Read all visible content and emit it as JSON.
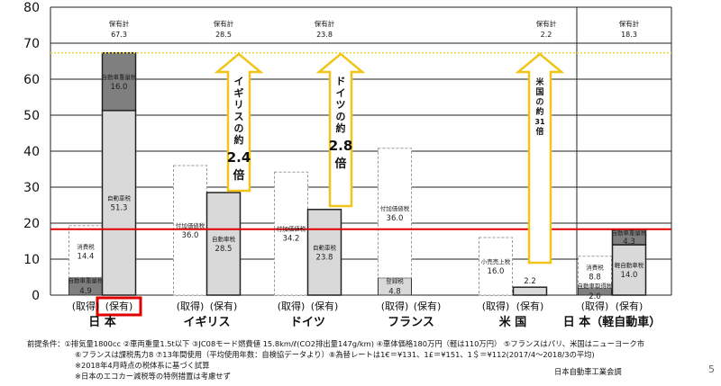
{
  "chart_data": {
    "type": "bar",
    "ylim": [
      0,
      80
    ],
    "yticks": [
      0,
      10,
      20,
      30,
      40,
      50,
      60,
      70,
      80
    ],
    "reference_line": 18.3,
    "dotted_line": 67.3,
    "colors": {
      "automobile_tax": "#d9d9d9",
      "weight_tax": "#7f7f7f",
      "consumption_tax": "#ffffff",
      "dashed_outline": "#9a9a9a",
      "red_line": "#e00000",
      "dotted_line": "#e6d63a",
      "arrow_outline": "#f0c419",
      "highlight_box": "#e00000"
    },
    "groups": [
      {
        "country": "日 本",
        "acquisition": {
          "label": "(取得)",
          "segments": [
            {
              "name": "自動車重量税",
              "value": 4.9,
              "color": "weight_tax"
            },
            {
              "name": "消費税",
              "value": 14.4,
              "color": "consumption_tax"
            }
          ]
        },
        "holding": {
          "label": "(保有)",
          "total_label": "保有計",
          "total": "67.3",
          "highlight": true,
          "segments": [
            {
              "name": "自動車税",
              "value": 51.3,
              "color": "automobile_tax"
            },
            {
              "name": "自動車重量税",
              "value": 16.0,
              "color": "weight_tax"
            }
          ]
        }
      },
      {
        "country": "イギリス",
        "acquisition": {
          "label": "(取得)",
          "segments": [
            {
              "name": "付加価値税",
              "value": 36.0,
              "color": "consumption_tax"
            }
          ]
        },
        "holding": {
          "label": "(保有)",
          "total_label": "保有計",
          "total": "28.5",
          "segments": [
            {
              "name": "自動車税",
              "value": 28.5,
              "color": "automobile_tax"
            }
          ]
        }
      },
      {
        "country": "ドイツ",
        "acquisition": {
          "label": "(取得)",
          "segments": [
            {
              "name": "付加価値税",
              "value": 34.2,
              "color": "consumption_tax"
            }
          ]
        },
        "holding": {
          "label": "(保有)",
          "total_label": "保有計",
          "total": "23.8",
          "segments": [
            {
              "name": "自動車税",
              "value": 23.8,
              "color": "automobile_tax"
            }
          ]
        }
      },
      {
        "country": "フランス",
        "acquisition": {
          "label": "(取得)",
          "segments": [
            {
              "name": "登録税",
              "value": 4.8,
              "color": "automobile_tax"
            },
            {
              "name": "付加価値税",
              "value": 36.0,
              "color": "consumption_tax"
            }
          ]
        },
        "holding": {
          "label": "(保有)",
          "segments": []
        }
      },
      {
        "country": "米 国",
        "acquisition": {
          "label": "(取得)",
          "segments": [
            {
              "name": "小売売上税",
              "value": 16.0,
              "color": "consumption_tax"
            }
          ]
        },
        "holding": {
          "label": "(保有)",
          "total_label": "保有計",
          "total": "2.2",
          "segments": [
            {
              "name": "",
              "value": 2.2,
              "color": "automobile_tax"
            }
          ]
        }
      },
      {
        "country": "日 本（軽自動車）",
        "acquisition": {
          "label": "(取得)",
          "segments": [
            {
              "name": "自動車取得税",
              "value": 2.0,
              "color": "weight_tax"
            },
            {
              "name": "消費税",
              "value": 8.8,
              "color": "consumption_tax"
            }
          ]
        },
        "holding": {
          "label": "(保有)",
          "total_label": "保有計",
          "total": "18.3",
          "segments": [
            {
              "name": "軽自動車税",
              "value": 14.0,
              "color": "automobile_tax"
            },
            {
              "name": "自動車重量税",
              "value": 4.3,
              "color": "weight_tax"
            }
          ]
        }
      }
    ],
    "arrows": [
      {
        "group": 1,
        "text": [
          "イギリスの約",
          "2.4",
          "倍"
        ]
      },
      {
        "group": 2,
        "text": [
          "ドイツの約",
          "2.8",
          "倍"
        ]
      },
      {
        "group": 4,
        "text": [
          "米国の約",
          "31",
          "倍"
        ]
      }
    ]
  },
  "footnotes": {
    "line1": "前提条件：①排気量1800cc ②車両重量1.5t以下 ③JC08モード燃費値 15.8km/ℓ(CO2排出量147g/km) ④車体価格180万円（軽は110万円） ⑤フランスはパリ、米国はニューヨーク市",
    "line2": "⑥フランスは課税馬力8 ⑦13年間使用（平均使用年数：自検協データより）⑧為替レートは1€＝¥131、1£＝¥151、1＄＝¥112(2017/4～2018/3の平均)",
    "line3": "※2018年4月時点の税体系に基づく試算",
    "line4": "※日本のエコカー減税等の特例措置は考慮せず"
  },
  "source": "日本自動車工業会調",
  "page_number": "5"
}
